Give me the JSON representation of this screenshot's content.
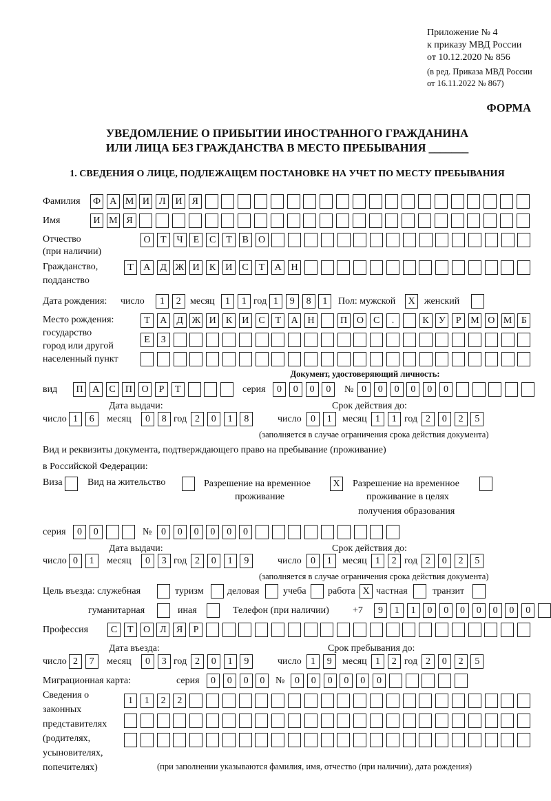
{
  "header": {
    "appendix": [
      "Приложение № 4",
      "к приказу МВД России",
      "от 10.12.2020 № 856"
    ],
    "revision": [
      "(в ред. Приказа МВД России",
      "от 16.11.2022 № 867)"
    ],
    "form_label": "ФОРМА",
    "title_line1": "УВЕДОМЛЕНИЕ О ПРИБЫТИИ ИНОСТРАННОГО ГРАЖДАНИНА",
    "title_line2": "ИЛИ ЛИЦА БЕЗ ГРАЖДАНСТВА В МЕСТО ПРЕБЫВАНИЯ _______",
    "section1": "1. СВЕДЕНИЯ О ЛИЦЕ, ПОДЛЕЖАЩЕМ ПОСТАНОВКЕ НА УЧЕТ ПО МЕСТУ ПРЕБЫВАНИЯ"
  },
  "labels": {
    "surname": "Фамилия",
    "name": "Имя",
    "patronymic": "Отчество",
    "patronymic_note": "(при наличии)",
    "citizenship": "Гражданство,",
    "citizenship2": "подданство",
    "birth_date": "Дата рождения:",
    "day": "число",
    "month": "месяц",
    "year": "год",
    "sex": "Пол: мужской",
    "female": "женский",
    "birth_place": [
      "Место рождения:",
      "государство",
      "город или другой",
      "населенный пункт"
    ],
    "id_doc": "Документ, удостоверяющий личность:",
    "kind": "вид",
    "series": "серия",
    "number": "№",
    "issue_date": "Дата выдачи:",
    "valid_until": "Срок действия до:",
    "validity_note": "(заполняется в случае ограничения срока действия документа)",
    "right_doc1": "Вид и реквизиты документа, подтверждающего право на пребывание (проживание)",
    "right_doc2": "в Российской Федерации:",
    "visa": "Виза",
    "residence": "Вид на жительство",
    "trp": [
      "Разрешение на временное",
      "проживание"
    ],
    "trp_edu": [
      "Разрешение на временное",
      "проживание в целях",
      "получения образования"
    ],
    "purpose": "Цель въезда: служебная",
    "tourism": "туризм",
    "business": "деловая",
    "study": "учеба",
    "work": "работа",
    "private": "частная",
    "transit": "транзит",
    "humanitarian": "гуманитарная",
    "other": "иная",
    "phone": "Телефон (при наличии)",
    "phone_prefix": "+7",
    "profession": "Профессия",
    "entry_date": "Дата въезда:",
    "stay_until": "Срок пребывания до:",
    "migration_card": "Миграционная карта:",
    "representatives": [
      "Сведения о",
      "законных",
      "представителях",
      "(родителях,",
      "усыновителях,",
      "попечителях)"
    ],
    "representatives_note": "(при заполнении указываются фамилия, имя, отчество (при наличии), дата рождения)"
  },
  "fields": {
    "surname": "ФАМИЛИЯ",
    "name": "ИМЯ",
    "patronymic": "ОТЧЕСТВО",
    "citizenship": "ТАДЖИКИСТАН",
    "birth_day": "12",
    "birth_month": "11",
    "birth_year": "1981",
    "sex_male": "X",
    "sex_female": "",
    "birth_place_1": "ТАДЖИКИСТАН ПОС. КУРМОМБ",
    "birth_place_2": "ЕЗ",
    "birth_place_3": "",
    "doc_kind": "ПАСПОРТ",
    "doc_series": "0000",
    "doc_number": "000000",
    "doc_issue_day": "16",
    "doc_issue_month": "08",
    "doc_issue_year": "2018",
    "doc_valid_day": "01",
    "doc_valid_month": "11",
    "doc_valid_year": "2025",
    "visa": "",
    "residence": "",
    "trp": "X",
    "trp_edu": "",
    "right_series": "00",
    "right_number": "000000",
    "right_issue_day": "01",
    "right_issue_month": "03",
    "right_issue_year": "2019",
    "right_valid_day": "01",
    "right_valid_month": "12",
    "right_valid_year": "2025",
    "purpose_official": "",
    "purpose_tourism": "",
    "purpose_business": "",
    "purpose_study": "",
    "purpose_work": "X",
    "purpose_private": "",
    "purpose_transit": "",
    "purpose_humanitarian": "",
    "purpose_other": "",
    "phone": "9110000000",
    "profession": "СТОЛЯР",
    "entry_day": "27",
    "entry_month": "03",
    "entry_year": "2019",
    "stay_day": "19",
    "stay_month": "12",
    "stay_year": "2025",
    "mc_series": "0000",
    "mc_number": "000000",
    "rep_1": "1122",
    "rep_2": "",
    "rep_3": ""
  }
}
